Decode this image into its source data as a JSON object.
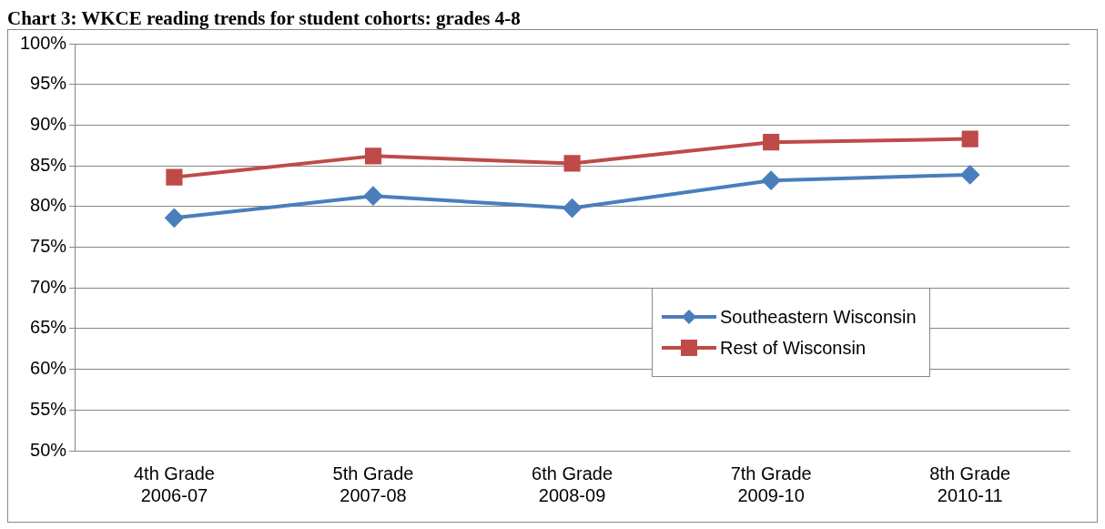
{
  "chart_data": {
    "type": "line",
    "title": "Chart 3: WKCE reading trends for student cohorts: grades 4-8",
    "categories": [
      "4th Grade 2006-07",
      "5th Grade 2007-08",
      "6th Grade 2008-09",
      "7th Grade 2009-10",
      "8th Grade 2010-11"
    ],
    "series": [
      {
        "name": "Southeastern Wisconsin",
        "color": "#4a7ebb",
        "marker": "diamond",
        "values": [
          78.6,
          81.3,
          79.8,
          83.2,
          83.9
        ]
      },
      {
        "name": "Rest of Wisconsin",
        "color": "#be4b48",
        "marker": "square",
        "values": [
          83.6,
          86.2,
          85.3,
          87.9,
          88.3
        ]
      }
    ],
    "ylim": [
      50,
      100
    ],
    "yticks": [
      {
        "value": 50,
        "label": "50%"
      },
      {
        "value": 55,
        "label": "55%"
      },
      {
        "value": 60,
        "label": "60%"
      },
      {
        "value": 65,
        "label": "65%"
      },
      {
        "value": 70,
        "label": "70%"
      },
      {
        "value": 75,
        "label": "75%"
      },
      {
        "value": 80,
        "label": "80%"
      },
      {
        "value": 85,
        "label": "85%"
      },
      {
        "value": 90,
        "label": "90%"
      },
      {
        "value": 95,
        "label": "95%"
      },
      {
        "value": 100,
        "label": "100%"
      }
    ],
    "grid": "y",
    "legend": "right",
    "line_style": "solid"
  }
}
